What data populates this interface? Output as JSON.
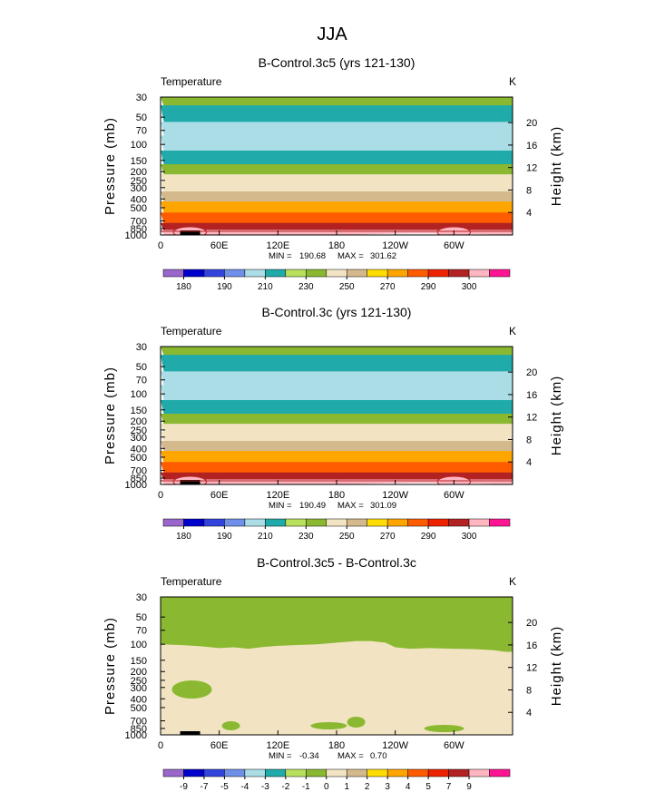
{
  "figure": {
    "supertitle": "JJA"
  },
  "colorbars": {
    "temperature": {
      "colors": [
        "#9966cc",
        "#0000cc",
        "#3344dd",
        "#6f8fe8",
        "#aadde6",
        "#20aaaa",
        "#b8e05c",
        "#8ab830",
        "#f2e4c3",
        "#d4b98c",
        "#ffdd00",
        "#ffa500",
        "#ff5c00",
        "#ee2200",
        "#b22222",
        "#ffb6c1",
        "#ff1493"
      ],
      "labels": [
        "180",
        "190",
        "210",
        "230",
        "250",
        "270",
        "290",
        "300"
      ],
      "label_slots": [
        1,
        3,
        5,
        7,
        9,
        11,
        13,
        15
      ]
    },
    "difference": {
      "colors": [
        "#9966cc",
        "#0000cc",
        "#3344dd",
        "#6f8fe8",
        "#aadde6",
        "#20aaaa",
        "#b8e05c",
        "#8ab830",
        "#f2e4c3",
        "#d4b98c",
        "#ffdd00",
        "#ffa500",
        "#ff5c00",
        "#ee2200",
        "#b22222",
        "#ffb6c1",
        "#ff1493"
      ],
      "labels": [
        "-9",
        "-7",
        "-5",
        "-4",
        "-3",
        "-2",
        "-1",
        "0",
        "1",
        "2",
        "3",
        "4",
        "5",
        "7",
        "9"
      ],
      "label_slots": [
        1,
        2,
        3,
        4,
        5,
        6,
        7,
        8,
        9,
        10,
        11,
        12,
        13,
        14,
        15
      ]
    }
  },
  "chart_data": [
    {
      "type": "contour",
      "title": "B-Control.3c5 (yrs 121-130)",
      "field_label": "Temperature",
      "units": "K",
      "xlabel": "",
      "ylabel": "Pressure (mb)",
      "ylabel_right": "Height (km)",
      "x_ticks": [
        "0",
        "60E",
        "120E",
        "180",
        "120W",
        "60W"
      ],
      "y_ticks": [
        "30",
        "50",
        "70",
        "100",
        "150",
        "200",
        "250",
        "300",
        "400",
        "500",
        "700",
        "850",
        "1000"
      ],
      "y_ticks_right": [
        "20",
        "16",
        "12",
        "8",
        "4"
      ],
      "ylim": [
        1000,
        30
      ],
      "xlim": [
        0,
        360
      ],
      "min": 190.68,
      "max": 301.62,
      "min_label": "MIN =",
      "max_label": "MAX =",
      "min_text": "190.68",
      "max_text": "301.62",
      "colorbar": "temperature",
      "profile": {
        "pressure": [
          30,
          50,
          70,
          100,
          150,
          200,
          250,
          300,
          400,
          500,
          700,
          850,
          1000
        ],
        "temperature": [
          223,
          212,
          205,
          203,
          212,
          222,
          230,
          236,
          249,
          258,
          274,
          285,
          297
        ]
      }
    },
    {
      "type": "contour",
      "title": "B-Control.3c (yrs 121-130)",
      "field_label": "Temperature",
      "units": "K",
      "xlabel": "",
      "ylabel": "Pressure (mb)",
      "ylabel_right": "Height (km)",
      "x_ticks": [
        "0",
        "60E",
        "120E",
        "180",
        "120W",
        "60W"
      ],
      "y_ticks": [
        "30",
        "50",
        "70",
        "100",
        "150",
        "200",
        "250",
        "300",
        "400",
        "500",
        "700",
        "850",
        "1000"
      ],
      "y_ticks_right": [
        "20",
        "16",
        "12",
        "8",
        "4"
      ],
      "ylim": [
        1000,
        30
      ],
      "xlim": [
        0,
        360
      ],
      "min": 190.49,
      "max": 301.09,
      "min_label": "MIN =",
      "max_label": "MAX =",
      "min_text": "190.49",
      "max_text": "301.09",
      "colorbar": "temperature",
      "profile": {
        "pressure": [
          30,
          50,
          70,
          100,
          150,
          200,
          250,
          300,
          400,
          500,
          700,
          850,
          1000
        ],
        "temperature": [
          223,
          212,
          205,
          203,
          212,
          222,
          230,
          236,
          249,
          258,
          274,
          285,
          297
        ]
      }
    },
    {
      "type": "contour",
      "title": "B-Control.3c5 - B-Control.3c",
      "field_label": "Temperature",
      "units": "K",
      "xlabel": "",
      "ylabel": "Pressure (mb)",
      "ylabel_right": "Height (km)",
      "x_ticks": [
        "0",
        "60E",
        "120E",
        "180",
        "120W",
        "60W"
      ],
      "y_ticks": [
        "30",
        "50",
        "70",
        "100",
        "150",
        "200",
        "250",
        "300",
        "400",
        "500",
        "700",
        "850",
        "1000"
      ],
      "y_ticks_right": [
        "20",
        "16",
        "12",
        "8",
        "4"
      ],
      "ylim": [
        1000,
        30
      ],
      "xlim": [
        0,
        360
      ],
      "min": -0.34,
      "max": 0.7,
      "min_label": "MIN =",
      "max_label": "MAX =",
      "min_text": "-0.34",
      "max_text": "0.70",
      "colorbar": "difference",
      "difference_regions": {
        "upper": "-1 to 0 (green) above ~100-130 mb",
        "lower": "0 to 1 (beige) below ~100-130 mb"
      }
    }
  ]
}
